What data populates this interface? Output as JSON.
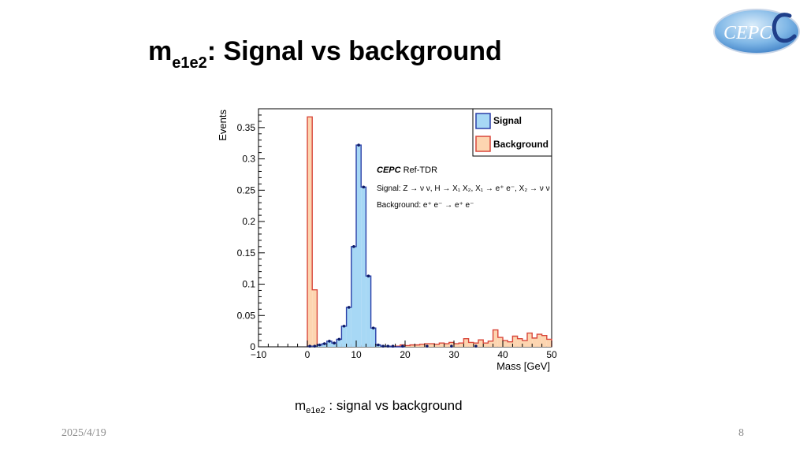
{
  "slide": {
    "title_main": "m",
    "title_sub": "e1e2",
    "title_rest": ": Signal vs background",
    "caption_main": "m",
    "caption_sub": "e1e2",
    "caption_rest": " : signal vs background",
    "date": "2025/4/19",
    "page_number": "8",
    "logo_text": "CEPC",
    "logo_icon": "cepc-logo"
  },
  "chart_data": {
    "type": "bar",
    "histogram": true,
    "xlabel": "Mass [GeV]",
    "ylabel": "Events",
    "xlim": [
      -10,
      50
    ],
    "ylim": [
      0,
      0.38
    ],
    "x_ticks": [
      "−10",
      "0",
      "10",
      "20",
      "30",
      "40",
      "50"
    ],
    "y_ticks": [
      "0",
      "0.05",
      "0.1",
      "0.15",
      "0.2",
      "0.25",
      "0.3",
      "0.35"
    ],
    "legend_placement": "top-right",
    "legend": [
      "Signal",
      "Background"
    ],
    "colors": {
      "signal_fill": "#a7d8f5",
      "signal_line": "#2a3fa8",
      "background_fill": "#fdd5b0",
      "background_line": "#d9473b",
      "marker": "#0d1a66"
    },
    "annotations": {
      "experiment": "CEPC",
      "experiment_suffix": " Ref-TDR",
      "signal_process": "Signal: Z → ν ν, H → X₁ X₂, X₁ → e⁺ e⁻, X₂ → ν ν",
      "background_process": "Background: e⁺ e⁻ → e⁺ e⁻"
    },
    "bin_width": 1,
    "bin_start": 0,
    "series": [
      {
        "name": "Signal",
        "values": [
          0.001,
          0.001,
          0.003,
          0.005,
          0.009,
          0.006,
          0.012,
          0.033,
          0.063,
          0.16,
          0.322,
          0.255,
          0.113,
          0.03,
          0.003,
          0.001,
          0.001,
          0,
          0,
          0
        ]
      },
      {
        "name": "Background",
        "values": [
          0.367,
          0.091,
          0.001,
          0.002,
          0.002,
          0.004,
          0.004,
          0.001,
          0.004,
          0.001,
          0.002,
          0.001,
          0.003,
          0.001,
          0.001,
          0.001,
          0.001,
          0.001,
          0.001,
          0.003,
          0.002,
          0.003,
          0.003,
          0.004,
          0.005,
          0.005,
          0.004,
          0.006,
          0.005,
          0.007,
          0.005,
          0.006,
          0.013,
          0.007,
          0.006,
          0.011,
          0.006,
          0.009,
          0.027,
          0.015,
          0.01,
          0.008,
          0.017,
          0.013,
          0.01,
          0.022,
          0.014,
          0.02,
          0.018,
          0.012
        ]
      }
    ],
    "data_points": {
      "x": [
        0.5,
        1.5,
        2.5,
        3.5,
        4.5,
        5.5,
        6.5,
        7.5,
        8.5,
        9.5,
        10.5,
        11.5,
        12.5,
        13.5,
        14.5,
        15.5,
        16.5,
        17.5,
        19.5,
        24.5,
        29.5,
        34.5
      ],
      "y": [
        0.001,
        0.001,
        0.003,
        0.005,
        0.009,
        0.006,
        0.012,
        0.033,
        0.063,
        0.16,
        0.322,
        0.255,
        0.113,
        0.03,
        0.003,
        0.001,
        0.001,
        0.001,
        0.001,
        0.001,
        0.001,
        0.001
      ]
    }
  }
}
